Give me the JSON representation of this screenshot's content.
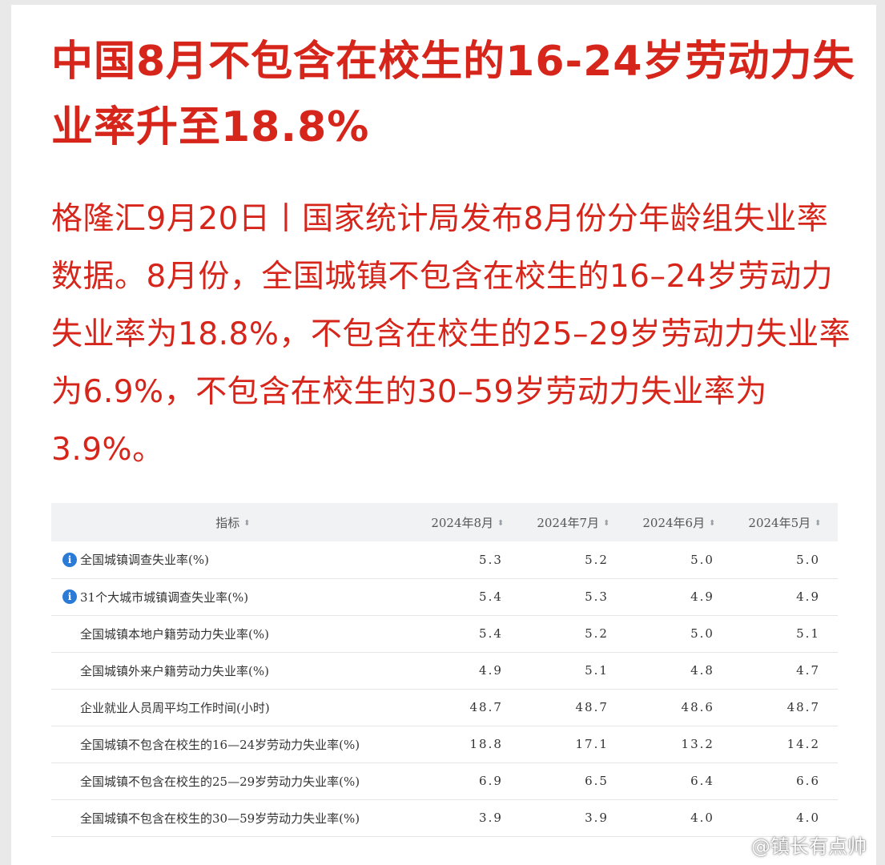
{
  "headline": "中国8月不包含在校生的16-24岁劳动力失业率升至18.8%",
  "lead": "格隆汇9月20日丨国家统计局发布8月份分年龄组失业率数据。8月份，全国城镇不包含在校生的16–24岁劳动力失业率为18.8%，不包含在校生的25–29岁劳动力失业率为6.9%，不包含在校生的30–59岁劳动力失业率为3.9%。",
  "table": {
    "headers": [
      "指标",
      "2024年8月",
      "2024年7月",
      "2024年6月",
      "2024年5月"
    ],
    "rows": [
      {
        "name": "全国城镇调查失业率(%)",
        "info": true,
        "values": [
          "5.3",
          "5.2",
          "5.0",
          "5.0"
        ]
      },
      {
        "name": "31个大城市城镇调查失业率(%)",
        "info": true,
        "values": [
          "5.4",
          "5.3",
          "4.9",
          "4.9"
        ]
      },
      {
        "name": "全国城镇本地户籍劳动力失业率(%)",
        "info": false,
        "values": [
          "5.4",
          "5.2",
          "5.0",
          "5.1"
        ]
      },
      {
        "name": "全国城镇外来户籍劳动力失业率(%)",
        "info": false,
        "values": [
          "4.9",
          "5.1",
          "4.8",
          "4.7"
        ]
      },
      {
        "name": "企业就业人员周平均工作时间(小时)",
        "info": false,
        "values": [
          "48.7",
          "48.7",
          "48.6",
          "48.7"
        ]
      },
      {
        "name": "全国城镇不包含在校生的16—24岁劳动力失业率(%)",
        "info": false,
        "values": [
          "18.8",
          "17.1",
          "13.2",
          "14.2"
        ]
      },
      {
        "name": "全国城镇不包含在校生的25—29岁劳动力失业率(%)",
        "info": false,
        "values": [
          "6.9",
          "6.5",
          "6.4",
          "6.6"
        ]
      },
      {
        "name": "全国城镇不包含在校生的30—59岁劳动力失业率(%)",
        "info": false,
        "values": [
          "3.9",
          "3.9",
          "4.0",
          "4.0"
        ]
      }
    ]
  },
  "watermark": "@镇长有点帅",
  "icons": {
    "sort": "sort-arrows-icon",
    "info": "info-icon",
    "watermark_logo": "weibo-logo-icon"
  },
  "colors": {
    "accent_red": "#d6261b",
    "info_blue": "#2a7ad6",
    "header_bg": "#f1f2f4"
  }
}
